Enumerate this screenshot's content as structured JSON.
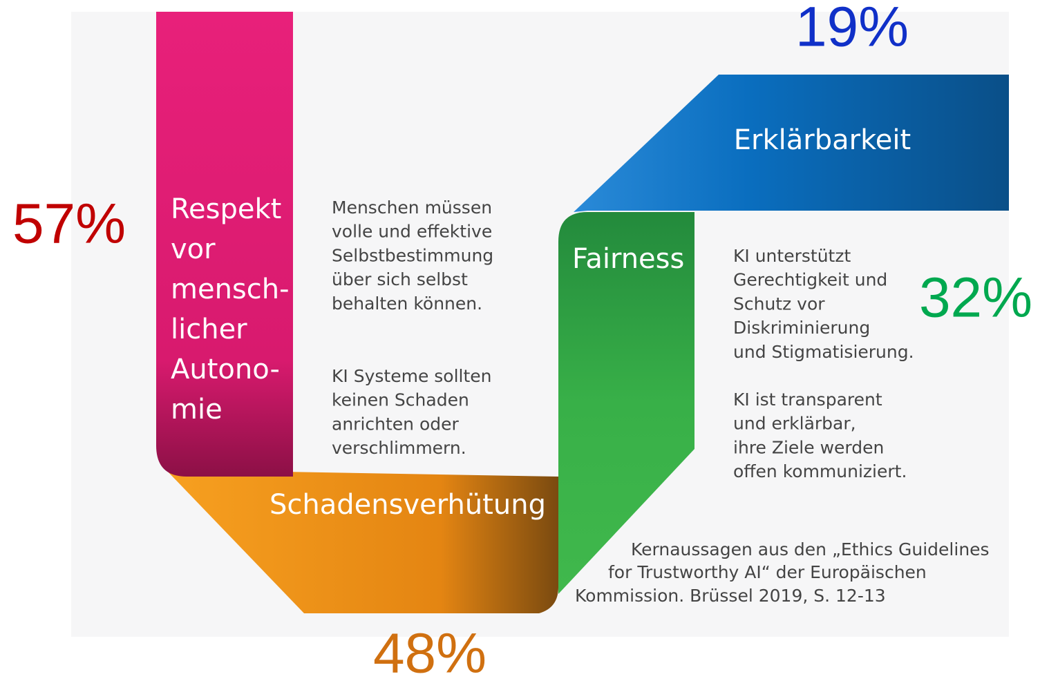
{
  "segments": [
    {
      "label": [
        "Respekt",
        "vor",
        "mensch-",
        "licher",
        "Autono-",
        "mie"
      ],
      "percent": "57%"
    },
    {
      "label": "Schadensverhütung",
      "percent": "48%"
    },
    {
      "label": "Fairness",
      "percent": "32%"
    },
    {
      "label": "Erklärbarkeit",
      "percent": "19%"
    }
  ],
  "texts": [
    [
      "Menschen müssen",
      "volle und effektive",
      "Selbstbestimmung",
      "über sich selbst",
      "behalten können."
    ],
    [
      "KI Systeme sollten",
      "keinen Schaden",
      "anrichten oder",
      "verschlimmern."
    ],
    [
      "KI unterstützt",
      "Gerechtigkeit und",
      "Schutz vor",
      "Diskriminierung",
      "und Stigmatisierung."
    ],
    [
      "KI ist transparent",
      "und erklärbar,",
      "ihre Ziele werden",
      "offen kommuniziert."
    ]
  ],
  "caption": [
    "Kernaussagen aus den „Ethics Guidelines",
    "for Trustworthy AI“ der Europäischen",
    "Kommission. Brüssel 2019, S. 12-13"
  ]
}
